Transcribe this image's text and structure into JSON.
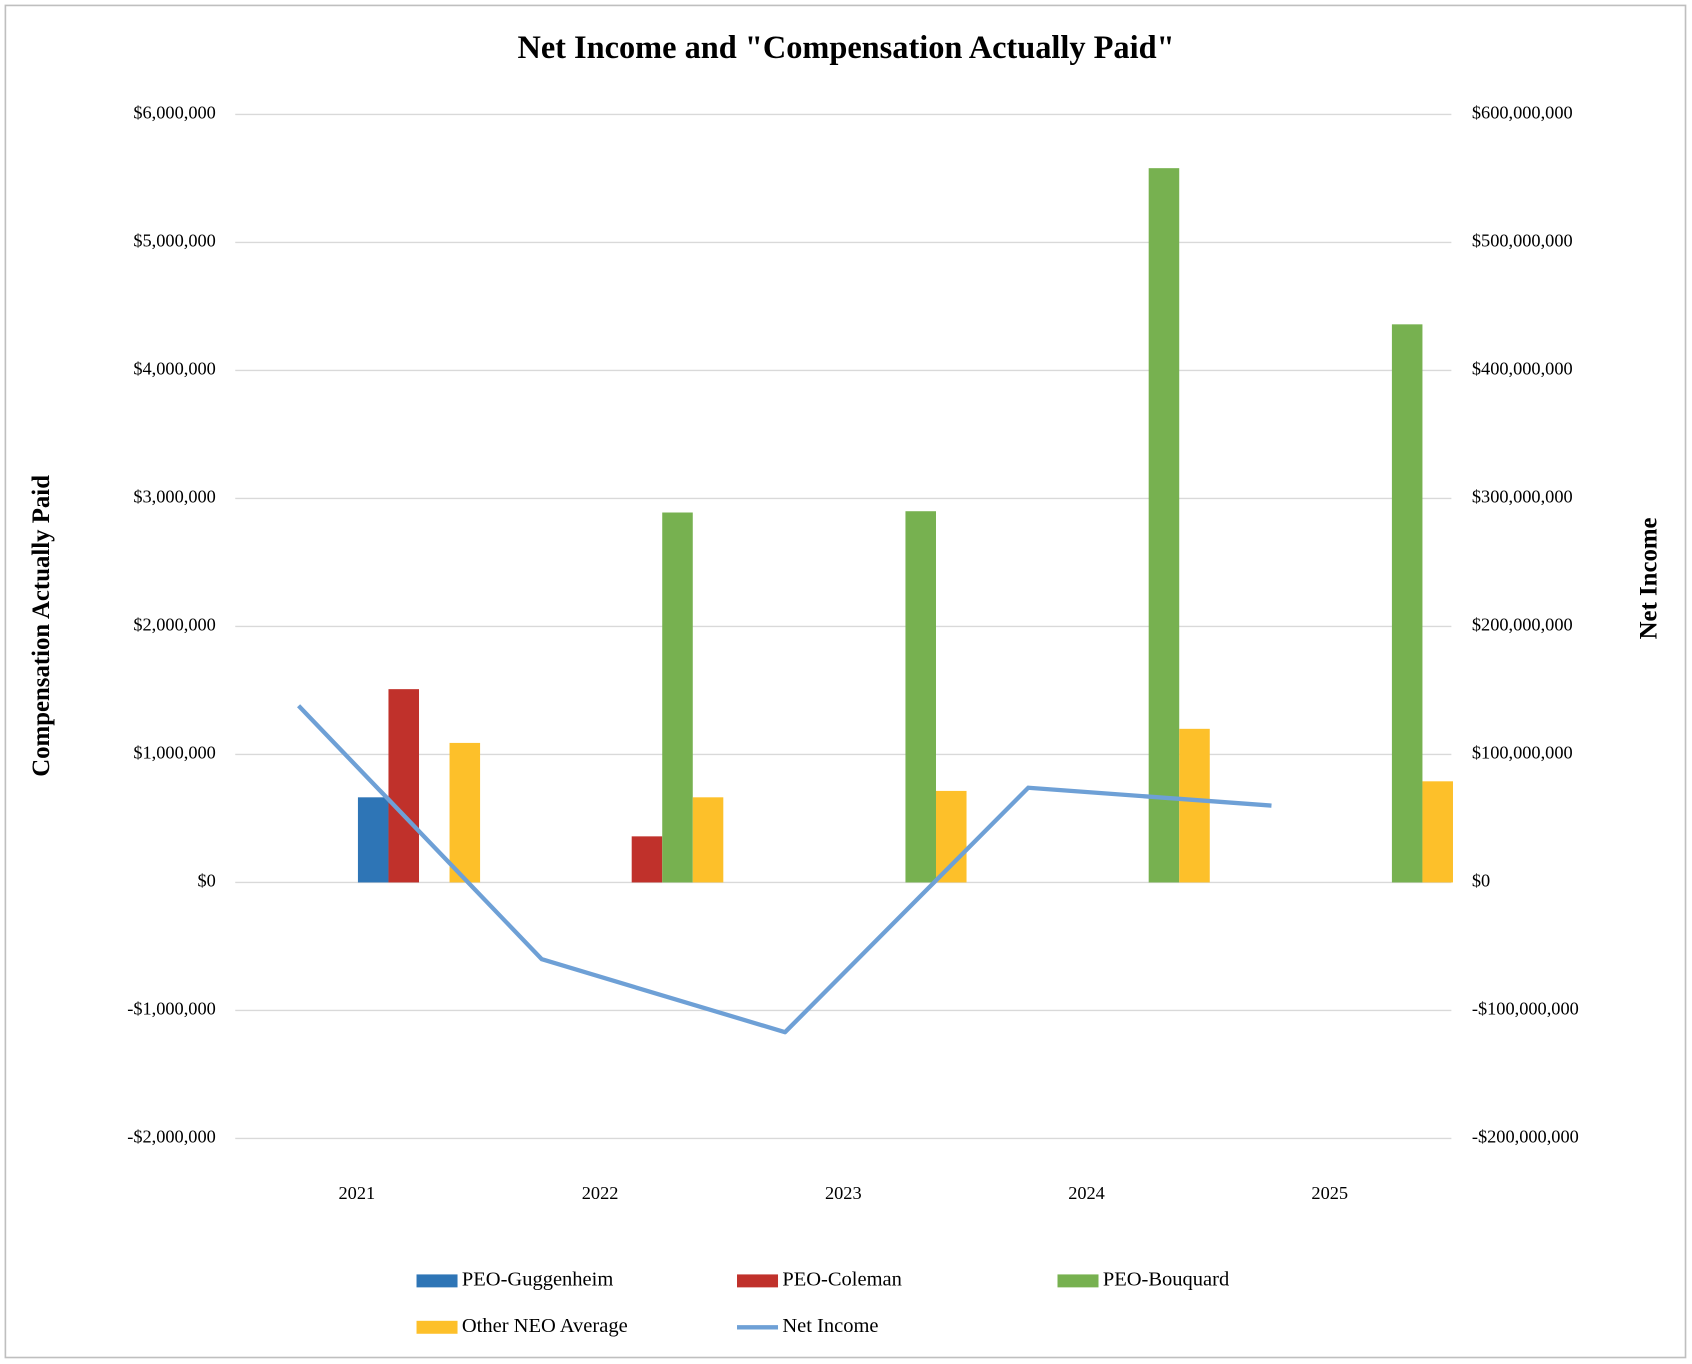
{
  "chart_data": {
    "type": "bar",
    "title": "Net Income and \"Compensation Actually Paid\"",
    "y_label": "Compensation Actually Paid",
    "y2_label": "Net Income",
    "categories": [
      "2021",
      "2022",
      "2023",
      "2024",
      "2025"
    ],
    "series": [
      {
        "name": "PEO-Guggenheim",
        "color": "#2e75b6",
        "values": [
          665000,
          null,
          null,
          null,
          null
        ]
      },
      {
        "name": "PEO-Coleman",
        "color": "#c0312b",
        "values": [
          1510000,
          360000,
          null,
          null,
          null
        ]
      },
      {
        "name": "PEO-Bouquard",
        "color": "#77b150",
        "values": [
          null,
          2890000,
          2900000,
          5580000,
          4360000
        ]
      },
      {
        "name": "Other NEO Average",
        "color": "#fdc02a",
        "values": [
          1090000,
          665000,
          715000,
          1200000,
          790000
        ]
      },
      {
        "name": "Net Income",
        "color": "#6ea0d6",
        "type": "line",
        "axis": "y2",
        "values": [
          138000000,
          -60000000,
          -117000000,
          74000000,
          60000000
        ]
      }
    ],
    "ylim": [
      -2000000,
      6000000
    ],
    "yticks": [
      {
        "value": -2000000,
        "label": "-$2,000,000"
      },
      {
        "value": -1000000,
        "label": "-$1,000,000"
      },
      {
        "value": 0,
        "label": "$0"
      },
      {
        "value": 1000000,
        "label": "$1,000,000"
      },
      {
        "value": 2000000,
        "label": "$2,000,000"
      },
      {
        "value": 3000000,
        "label": "$3,000,000"
      },
      {
        "value": 4000000,
        "label": "$4,000,000"
      },
      {
        "value": 5000000,
        "label": "$5,000,000"
      },
      {
        "value": 6000000,
        "label": "$6,000,000"
      }
    ],
    "y2lim": [
      -200000000,
      600000000
    ],
    "y2ticks": [
      {
        "value": -200000000,
        "label": "-$200,000,000"
      },
      {
        "value": -100000000,
        "label": "-$100,000,000"
      },
      {
        "value": 0,
        "label": "$0"
      },
      {
        "value": 100000000,
        "label": "$100,000,000"
      },
      {
        "value": 200000000,
        "label": "$200,000,000"
      },
      {
        "value": 300000000,
        "label": "$300,000,000"
      },
      {
        "value": 400000000,
        "label": "$400,000,000"
      },
      {
        "value": 500000000,
        "label": "$500,000,000"
      },
      {
        "value": 600000000,
        "label": "$600,000,000"
      }
    ],
    "grid": true,
    "legend": "bottom"
  }
}
